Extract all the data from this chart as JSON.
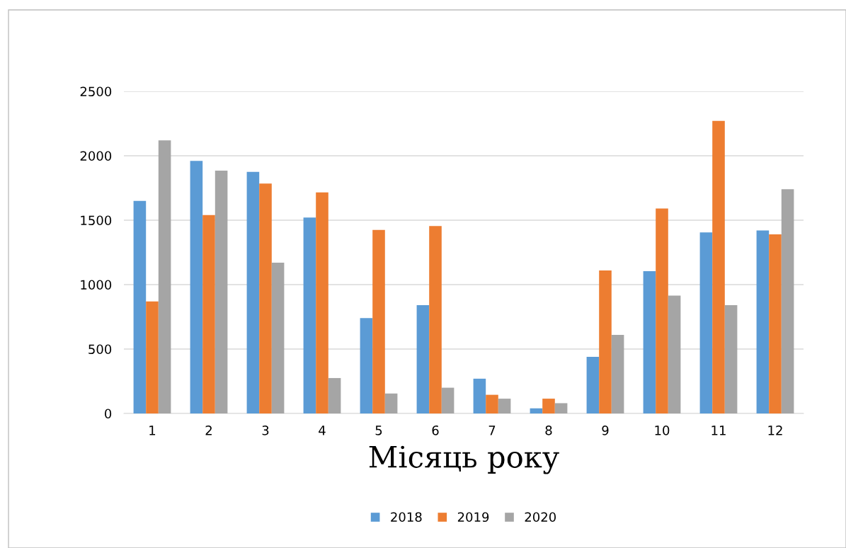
{
  "chart_data": {
    "type": "bar",
    "xlabel": "Місяць року",
    "categories": [
      "1",
      "2",
      "3",
      "4",
      "5",
      "6",
      "7",
      "8",
      "9",
      "10",
      "11",
      "12"
    ],
    "series": [
      {
        "name": "2018",
        "color": "#5b9bd5",
        "values": [
          1650,
          1960,
          1875,
          1520,
          740,
          840,
          270,
          40,
          440,
          1105,
          1405,
          1420
        ]
      },
      {
        "name": "2019",
        "color": "#ed7d31",
        "values": [
          870,
          1540,
          1785,
          1715,
          1425,
          1455,
          145,
          115,
          1110,
          1590,
          2270,
          1390
        ]
      },
      {
        "name": "2020",
        "color": "#a5a5a5",
        "values": [
          2120,
          1885,
          1170,
          275,
          155,
          200,
          115,
          80,
          610,
          915,
          840,
          1740
        ]
      }
    ],
    "ylim": [
      0,
      2500
    ],
    "yticks": [
      0,
      500,
      1000,
      1500,
      2000,
      2500
    ],
    "grid": "y",
    "legend": "bottom"
  }
}
